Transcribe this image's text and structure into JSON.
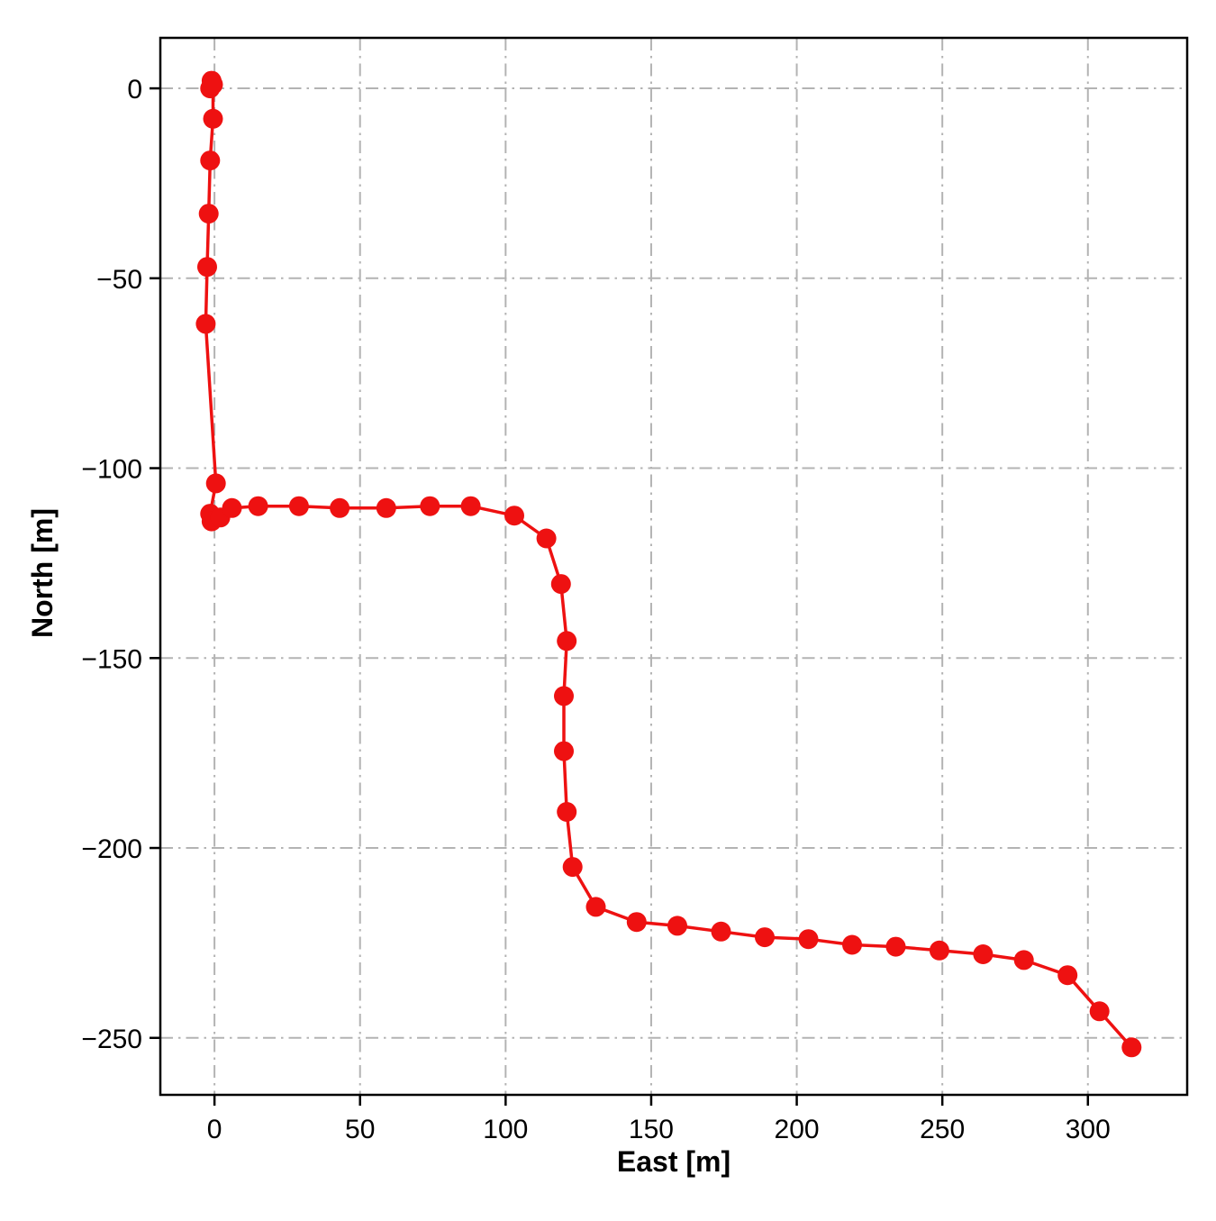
{
  "figure": {
    "background_color": "#ffffff"
  },
  "chart_data": {
    "type": "line",
    "title": "",
    "xlabel": "East [m]",
    "ylabel": "North [m]",
    "xlim": [
      -18.6,
      334.1
    ],
    "ylim": [
      -265,
      13.3
    ],
    "xticks": [
      0,
      50,
      100,
      150,
      200,
      250,
      300
    ],
    "yticks": [
      0,
      -50,
      -100,
      -150,
      -200,
      -250
    ],
    "grid": true,
    "grid_line_style": "dash-dot",
    "grid_color": "#b3b3b3",
    "axis_color": "#000000",
    "legend_position": "none",
    "series": [
      {
        "name": "trajectory",
        "color": "#ee1111",
        "marker": "circle",
        "marker_radius": 11,
        "line_width": 3.5,
        "x": [
          -1.0,
          -1.5,
          -0.5,
          -0.5,
          -1.5,
          -2.0,
          -2.5,
          -3.0,
          0.5,
          -1.5,
          -1.0,
          2.0,
          6.0,
          15.0,
          29.0,
          43.0,
          59.0,
          74.0,
          88.0,
          103.0,
          114.0,
          119.0,
          121.0,
          120.0,
          120.0,
          121.0,
          123.0,
          131.0,
          145.0,
          159.0,
          174.0,
          189.0,
          204.0,
          219.0,
          234.0,
          249.0,
          264.0,
          278.0,
          293.0,
          304.0,
          315.0
        ],
        "y": [
          2.0,
          0.0,
          1.0,
          -8.0,
          -19.0,
          -33.0,
          -47.0,
          -62.0,
          -104.0,
          -112.0,
          -114.0,
          -113.0,
          -110.5,
          -110.0,
          -110.0,
          -110.5,
          -110.5,
          -110.0,
          -110.0,
          -112.5,
          -118.5,
          -130.5,
          -145.5,
          -160.0,
          -174.5,
          -190.5,
          -205.0,
          -215.5,
          -219.5,
          -220.5,
          -222.0,
          -223.5,
          -224.0,
          -225.5,
          -226.0,
          -227.0,
          -228.0,
          -229.5,
          -233.5,
          -243.0,
          -252.5
        ]
      }
    ]
  }
}
